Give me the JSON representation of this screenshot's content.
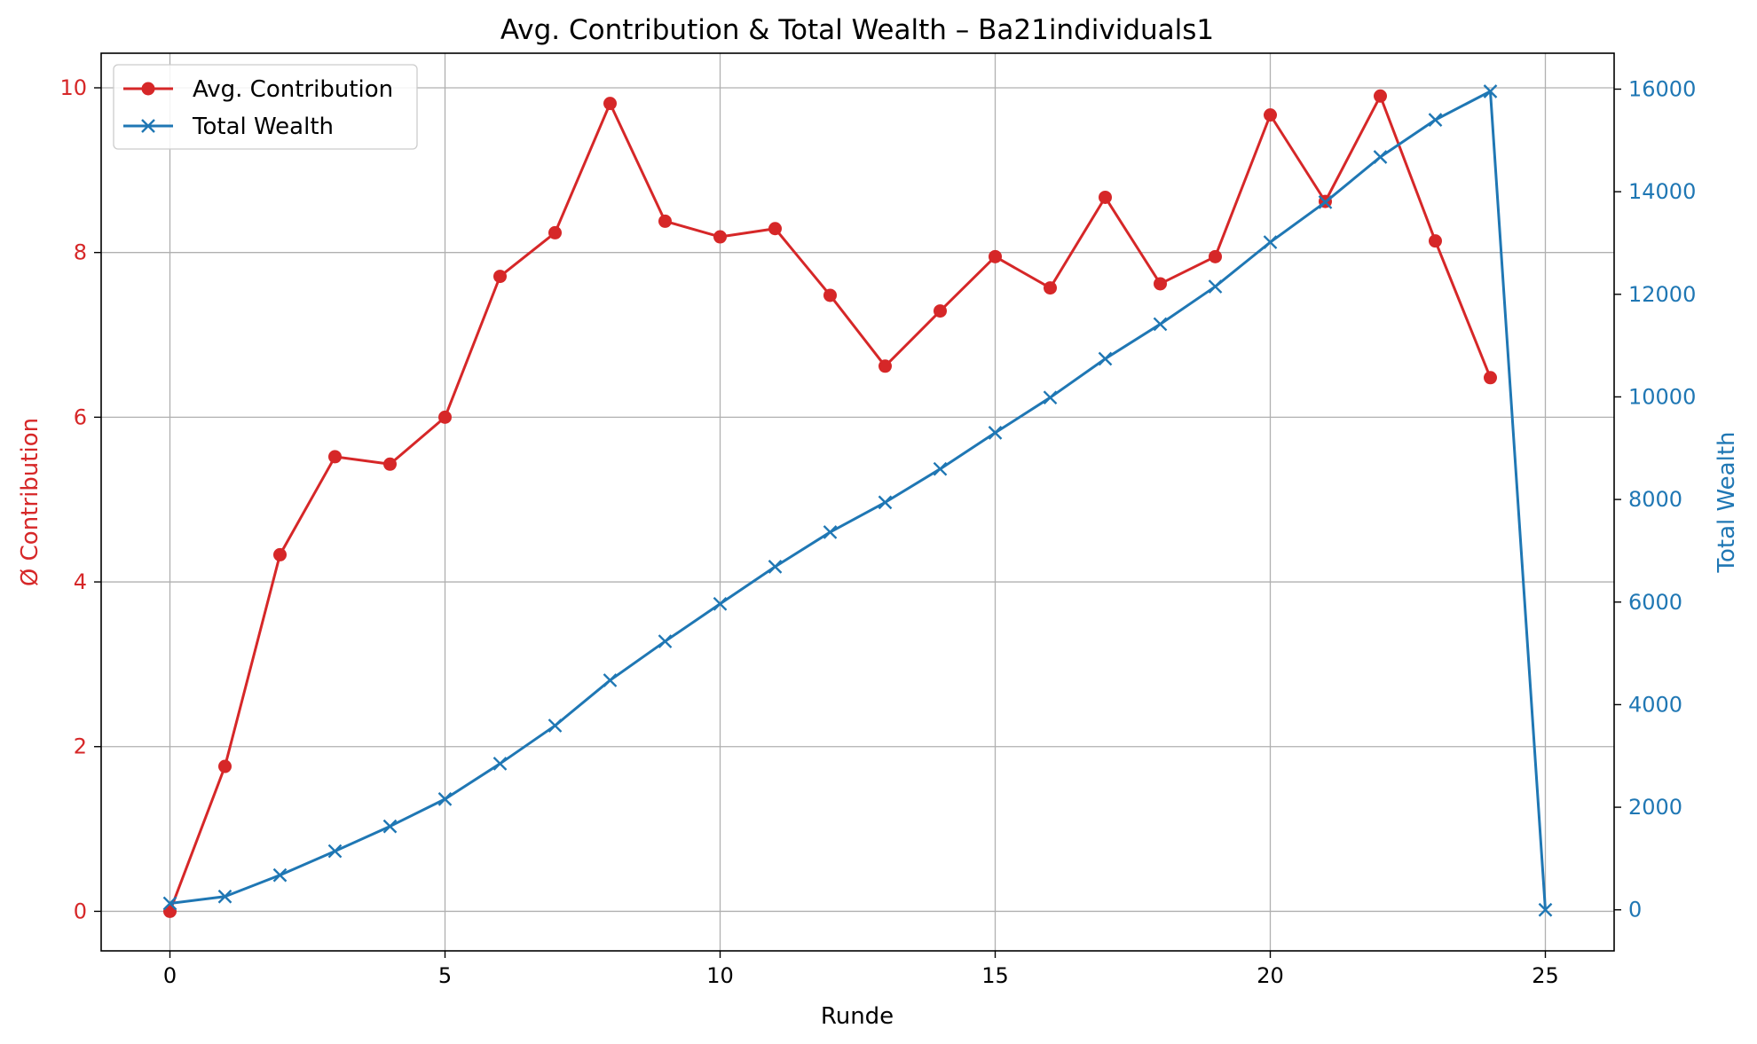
{
  "chart_data": {
    "type": "line",
    "title": "Avg. Contribution & Total Wealth – Ba21individuals1",
    "xlabel": "Runde",
    "ylabel_left": "Ø Contribution",
    "ylabel_right": "Total Wealth",
    "xlim": [
      -1.25,
      26.25
    ],
    "ylim_left": [
      -0.48,
      10.42
    ],
    "ylim_right": [
      -800,
      16700
    ],
    "xticks": [
      0,
      5,
      10,
      15,
      20,
      25
    ],
    "yticks_left": [
      0,
      2,
      4,
      6,
      8,
      10
    ],
    "yticks_right": [
      0,
      2000,
      4000,
      6000,
      8000,
      10000,
      12000,
      14000,
      16000
    ],
    "grid": true,
    "legend_position": "upper-left",
    "colors": {
      "contribution": "#d62728",
      "wealth": "#1f77b4"
    },
    "series": [
      {
        "name": "Avg. Contribution",
        "axis": "left",
        "marker": "circle",
        "color": "#d62728",
        "x": [
          0,
          1,
          2,
          3,
          4,
          5,
          6,
          7,
          8,
          9,
          10,
          11,
          12,
          13,
          14,
          15,
          16,
          17,
          18,
          19,
          20,
          21,
          22,
          23,
          24
        ],
        "values": [
          0.0,
          1.76,
          4.33,
          5.52,
          5.43,
          6.0,
          7.71,
          8.24,
          9.81,
          8.38,
          8.19,
          8.29,
          7.48,
          6.62,
          7.29,
          7.95,
          7.57,
          8.67,
          7.62,
          7.95,
          9.67,
          8.62,
          9.9,
          8.14,
          6.48
        ]
      },
      {
        "name": "Total Wealth",
        "axis": "right",
        "marker": "x",
        "color": "#1f77b4",
        "x": [
          0,
          1,
          2,
          3,
          4,
          5,
          6,
          7,
          8,
          9,
          10,
          11,
          12,
          13,
          14,
          15,
          16,
          17,
          18,
          19,
          20,
          21,
          22,
          23,
          24,
          25
        ],
        "values": [
          126,
          259,
          676,
          1144,
          1628,
          2159,
          2850,
          3591,
          4475,
          5234,
          5965,
          6690,
          7363,
          7943,
          8595,
          9301,
          9987,
          10743,
          11418,
          12151,
          13016,
          13796,
          14677,
          15401,
          15957,
          0
        ]
      }
    ]
  }
}
